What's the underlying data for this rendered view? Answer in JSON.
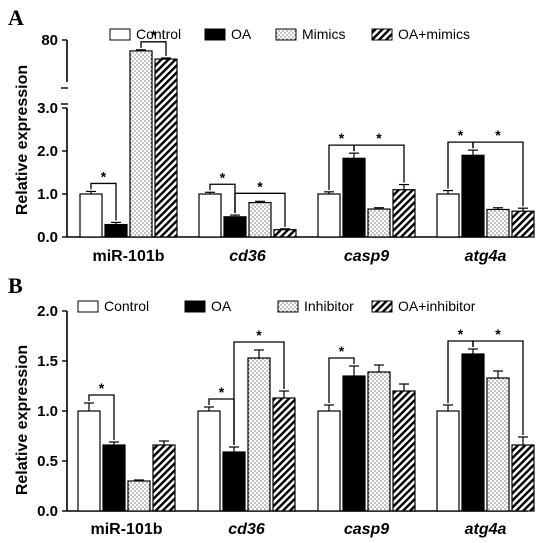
{
  "chart_data": [
    {
      "panel": "A",
      "type": "bar",
      "categories": [
        "miR-101b",
        "cd36",
        "casp9",
        "atg4a"
      ],
      "italic_categories": [
        false,
        true,
        true,
        true
      ],
      "ylabel": "Relative expression",
      "axis_break": true,
      "ylim_lower": [
        0,
        3.0
      ],
      "ylim_upper": [
        3.0,
        80
      ],
      "yticks": [
        "0.0",
        "1.0",
        "2.0",
        "3.0",
        "80"
      ],
      "series": [
        {
          "name": "Control",
          "pattern": "white",
          "values": [
            1.0,
            1.0,
            1.0,
            1.0
          ],
          "errors": [
            0.06,
            0.04,
            0.05,
            0.08
          ]
        },
        {
          "name": "OA",
          "pattern": "black",
          "values": [
            0.29,
            0.47,
            1.83,
            1.9
          ],
          "errors": [
            0.05,
            0.04,
            0.12,
            0.12
          ]
        },
        {
          "name": "Mimics",
          "pattern": "dotted",
          "values": [
            60,
            0.8,
            0.65,
            0.64
          ],
          "errors": [
            2.0,
            0.03,
            0.03,
            0.04
          ]
        },
        {
          "name": "OA+mimics",
          "pattern": "hatch",
          "values": [
            45,
            0.17,
            1.1,
            0.6
          ],
          "errors": [
            2.0,
            0.02,
            0.12,
            0.07
          ]
        }
      ],
      "significance": [
        {
          "cat": 0,
          "from": 0,
          "to": 1,
          "label": "*"
        },
        {
          "cat": 0,
          "from": 2,
          "to": 3,
          "label": "*"
        },
        {
          "cat": 1,
          "from": 0,
          "to": 1,
          "label": "*"
        },
        {
          "cat": 1,
          "from": 1,
          "to": 3,
          "label": "*"
        },
        {
          "cat": 2,
          "from": 0,
          "to": 1,
          "label": "*"
        },
        {
          "cat": 2,
          "from": 1,
          "to": 3,
          "label": "*"
        },
        {
          "cat": 3,
          "from": 0,
          "to": 1,
          "label": "*"
        },
        {
          "cat": 3,
          "from": 1,
          "to": 3,
          "label": "*"
        }
      ]
    },
    {
      "panel": "B",
      "type": "bar",
      "categories": [
        "miR-101b",
        "cd36",
        "casp9",
        "atg4a"
      ],
      "italic_categories": [
        false,
        true,
        true,
        true
      ],
      "ylabel": "Relative expression",
      "ylim": [
        0,
        2.0
      ],
      "yticks": [
        "0.0",
        "0.5",
        "1.0",
        "1.5",
        "2.0"
      ],
      "series": [
        {
          "name": "Control",
          "pattern": "white",
          "values": [
            1.0,
            1.0,
            1.0,
            1.0
          ],
          "errors": [
            0.08,
            0.04,
            0.06,
            0.06
          ]
        },
        {
          "name": "OA",
          "pattern": "black",
          "values": [
            0.66,
            0.59,
            1.35,
            1.57
          ],
          "errors": [
            0.03,
            0.05,
            0.1,
            0.05
          ]
        },
        {
          "name": "Inhibitor",
          "pattern": "dotted",
          "values": [
            0.3,
            1.53,
            1.39,
            1.33
          ],
          "errors": [
            0.01,
            0.08,
            0.07,
            0.07
          ]
        },
        {
          "name": "OA+inhibitor",
          "pattern": "hatch",
          "values": [
            0.66,
            1.13,
            1.2,
            0.66
          ],
          "errors": [
            0.04,
            0.07,
            0.07,
            0.08
          ]
        }
      ],
      "significance": [
        {
          "cat": 0,
          "from": 0,
          "to": 1,
          "label": "*"
        },
        {
          "cat": 1,
          "from": 0,
          "to": 1,
          "label": "*"
        },
        {
          "cat": 1,
          "from": 1,
          "to": 3,
          "label": "*"
        },
        {
          "cat": 2,
          "from": 0,
          "to": 1,
          "label": "*"
        },
        {
          "cat": 3,
          "from": 0,
          "to": 1,
          "label": "*"
        },
        {
          "cat": 3,
          "from": 1,
          "to": 3,
          "label": "*"
        }
      ]
    }
  ]
}
